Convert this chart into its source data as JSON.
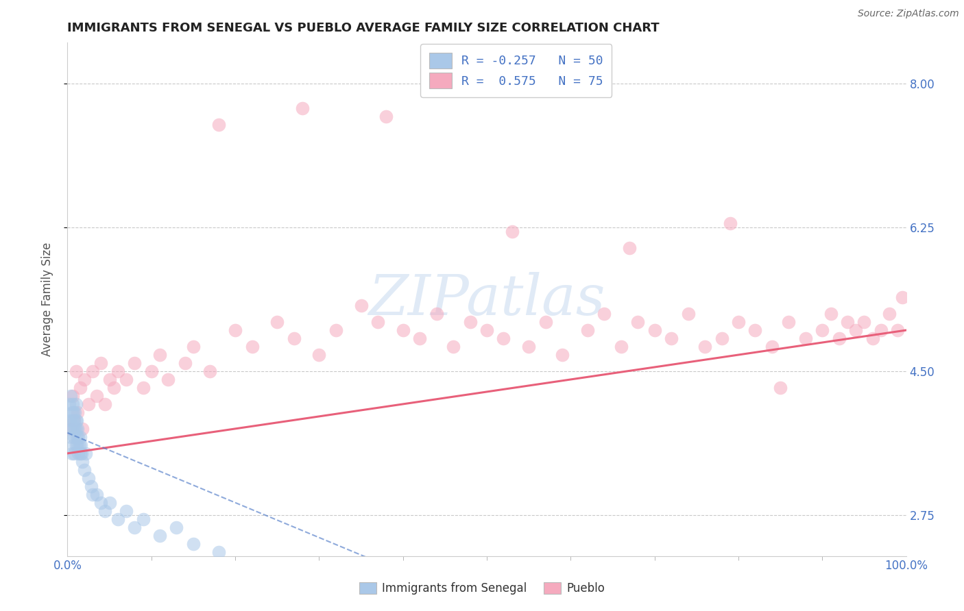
{
  "title": "IMMIGRANTS FROM SENEGAL VS PUEBLO AVERAGE FAMILY SIZE CORRELATION CHART",
  "source": "Source: ZipAtlas.com",
  "ylabel": "Average Family Size",
  "yticks": [
    2.75,
    4.5,
    6.25,
    8.0
  ],
  "xlim": [
    0,
    100
  ],
  "ylim": [
    2.25,
    8.5
  ],
  "legend_entries": [
    {
      "label": "Immigrants from Senegal",
      "R": -0.257,
      "N": 50,
      "color": "#aac8e8"
    },
    {
      "label": "Pueblo",
      "R": 0.575,
      "N": 75,
      "color": "#f5aabe"
    }
  ],
  "blue_scatter_color": "#aac8e8",
  "pink_scatter_color": "#f5aabe",
  "blue_line_color": "#4472c4",
  "pink_line_color": "#e8607a",
  "watermark_text": "ZIPatlas",
  "title_color": "#222222",
  "right_tick_color": "#4472c4",
  "grid_color": "#bbbbbb",
  "bottom_xlabel_color": "#4472c4",
  "senegal_x": [
    0.2,
    0.3,
    0.4,
    0.4,
    0.5,
    0.5,
    0.5,
    0.6,
    0.6,
    0.7,
    0.7,
    0.7,
    0.8,
    0.8,
    0.8,
    0.9,
    0.9,
    1.0,
    1.0,
    1.0,
    1.0,
    1.1,
    1.1,
    1.2,
    1.2,
    1.3,
    1.3,
    1.4,
    1.5,
    1.5,
    1.6,
    1.7,
    1.8,
    2.0,
    2.2,
    2.5,
    2.8,
    3.0,
    3.5,
    4.0,
    4.5,
    5.0,
    6.0,
    7.0,
    8.0,
    9.0,
    11.0,
    13.0,
    15.0,
    18.0
  ],
  "senegal_y": [
    4.1,
    3.9,
    4.2,
    3.7,
    3.8,
    4.0,
    3.5,
    3.9,
    4.1,
    3.6,
    3.8,
    4.0,
    3.7,
    3.9,
    3.5,
    3.8,
    4.0,
    3.6,
    3.8,
    3.9,
    4.1,
    3.7,
    3.9,
    3.6,
    3.8,
    3.5,
    3.7,
    3.6,
    3.5,
    3.7,
    3.6,
    3.5,
    3.4,
    3.3,
    3.5,
    3.2,
    3.1,
    3.0,
    3.0,
    2.9,
    2.8,
    2.9,
    2.7,
    2.8,
    2.6,
    2.7,
    2.5,
    2.6,
    2.4,
    2.3
  ],
  "pueblo_x": [
    0.4,
    0.6,
    0.8,
    1.0,
    1.2,
    1.5,
    1.8,
    2.0,
    2.5,
    3.0,
    3.5,
    4.0,
    4.5,
    5.0,
    5.5,
    6.0,
    7.0,
    8.0,
    9.0,
    10.0,
    11.0,
    12.0,
    14.0,
    15.0,
    17.0,
    20.0,
    22.0,
    25.0,
    27.0,
    30.0,
    32.0,
    35.0,
    37.0,
    40.0,
    42.0,
    44.0,
    46.0,
    48.0,
    50.0,
    52.0,
    55.0,
    57.0,
    59.0,
    62.0,
    64.0,
    66.0,
    68.0,
    70.0,
    72.0,
    74.0,
    76.0,
    78.0,
    80.0,
    82.0,
    84.0,
    86.0,
    88.0,
    90.0,
    91.0,
    92.0,
    93.0,
    94.0,
    95.0,
    96.0,
    97.0,
    98.0,
    99.0,
    99.5,
    18.0,
    28.0,
    38.0,
    53.0,
    67.0,
    79.0,
    85.0
  ],
  "pueblo_y": [
    3.8,
    4.2,
    3.9,
    4.5,
    4.0,
    4.3,
    3.8,
    4.4,
    4.1,
    4.5,
    4.2,
    4.6,
    4.1,
    4.4,
    4.3,
    4.5,
    4.4,
    4.6,
    4.3,
    4.5,
    4.7,
    4.4,
    4.6,
    4.8,
    4.5,
    5.0,
    4.8,
    5.1,
    4.9,
    4.7,
    5.0,
    5.3,
    5.1,
    5.0,
    4.9,
    5.2,
    4.8,
    5.1,
    5.0,
    4.9,
    4.8,
    5.1,
    4.7,
    5.0,
    5.2,
    4.8,
    5.1,
    5.0,
    4.9,
    5.2,
    4.8,
    4.9,
    5.1,
    5.0,
    4.8,
    5.1,
    4.9,
    5.0,
    5.2,
    4.9,
    5.1,
    5.0,
    5.1,
    4.9,
    5.0,
    5.2,
    5.0,
    5.4,
    7.5,
    7.7,
    7.6,
    6.2,
    6.0,
    6.3,
    4.3
  ]
}
